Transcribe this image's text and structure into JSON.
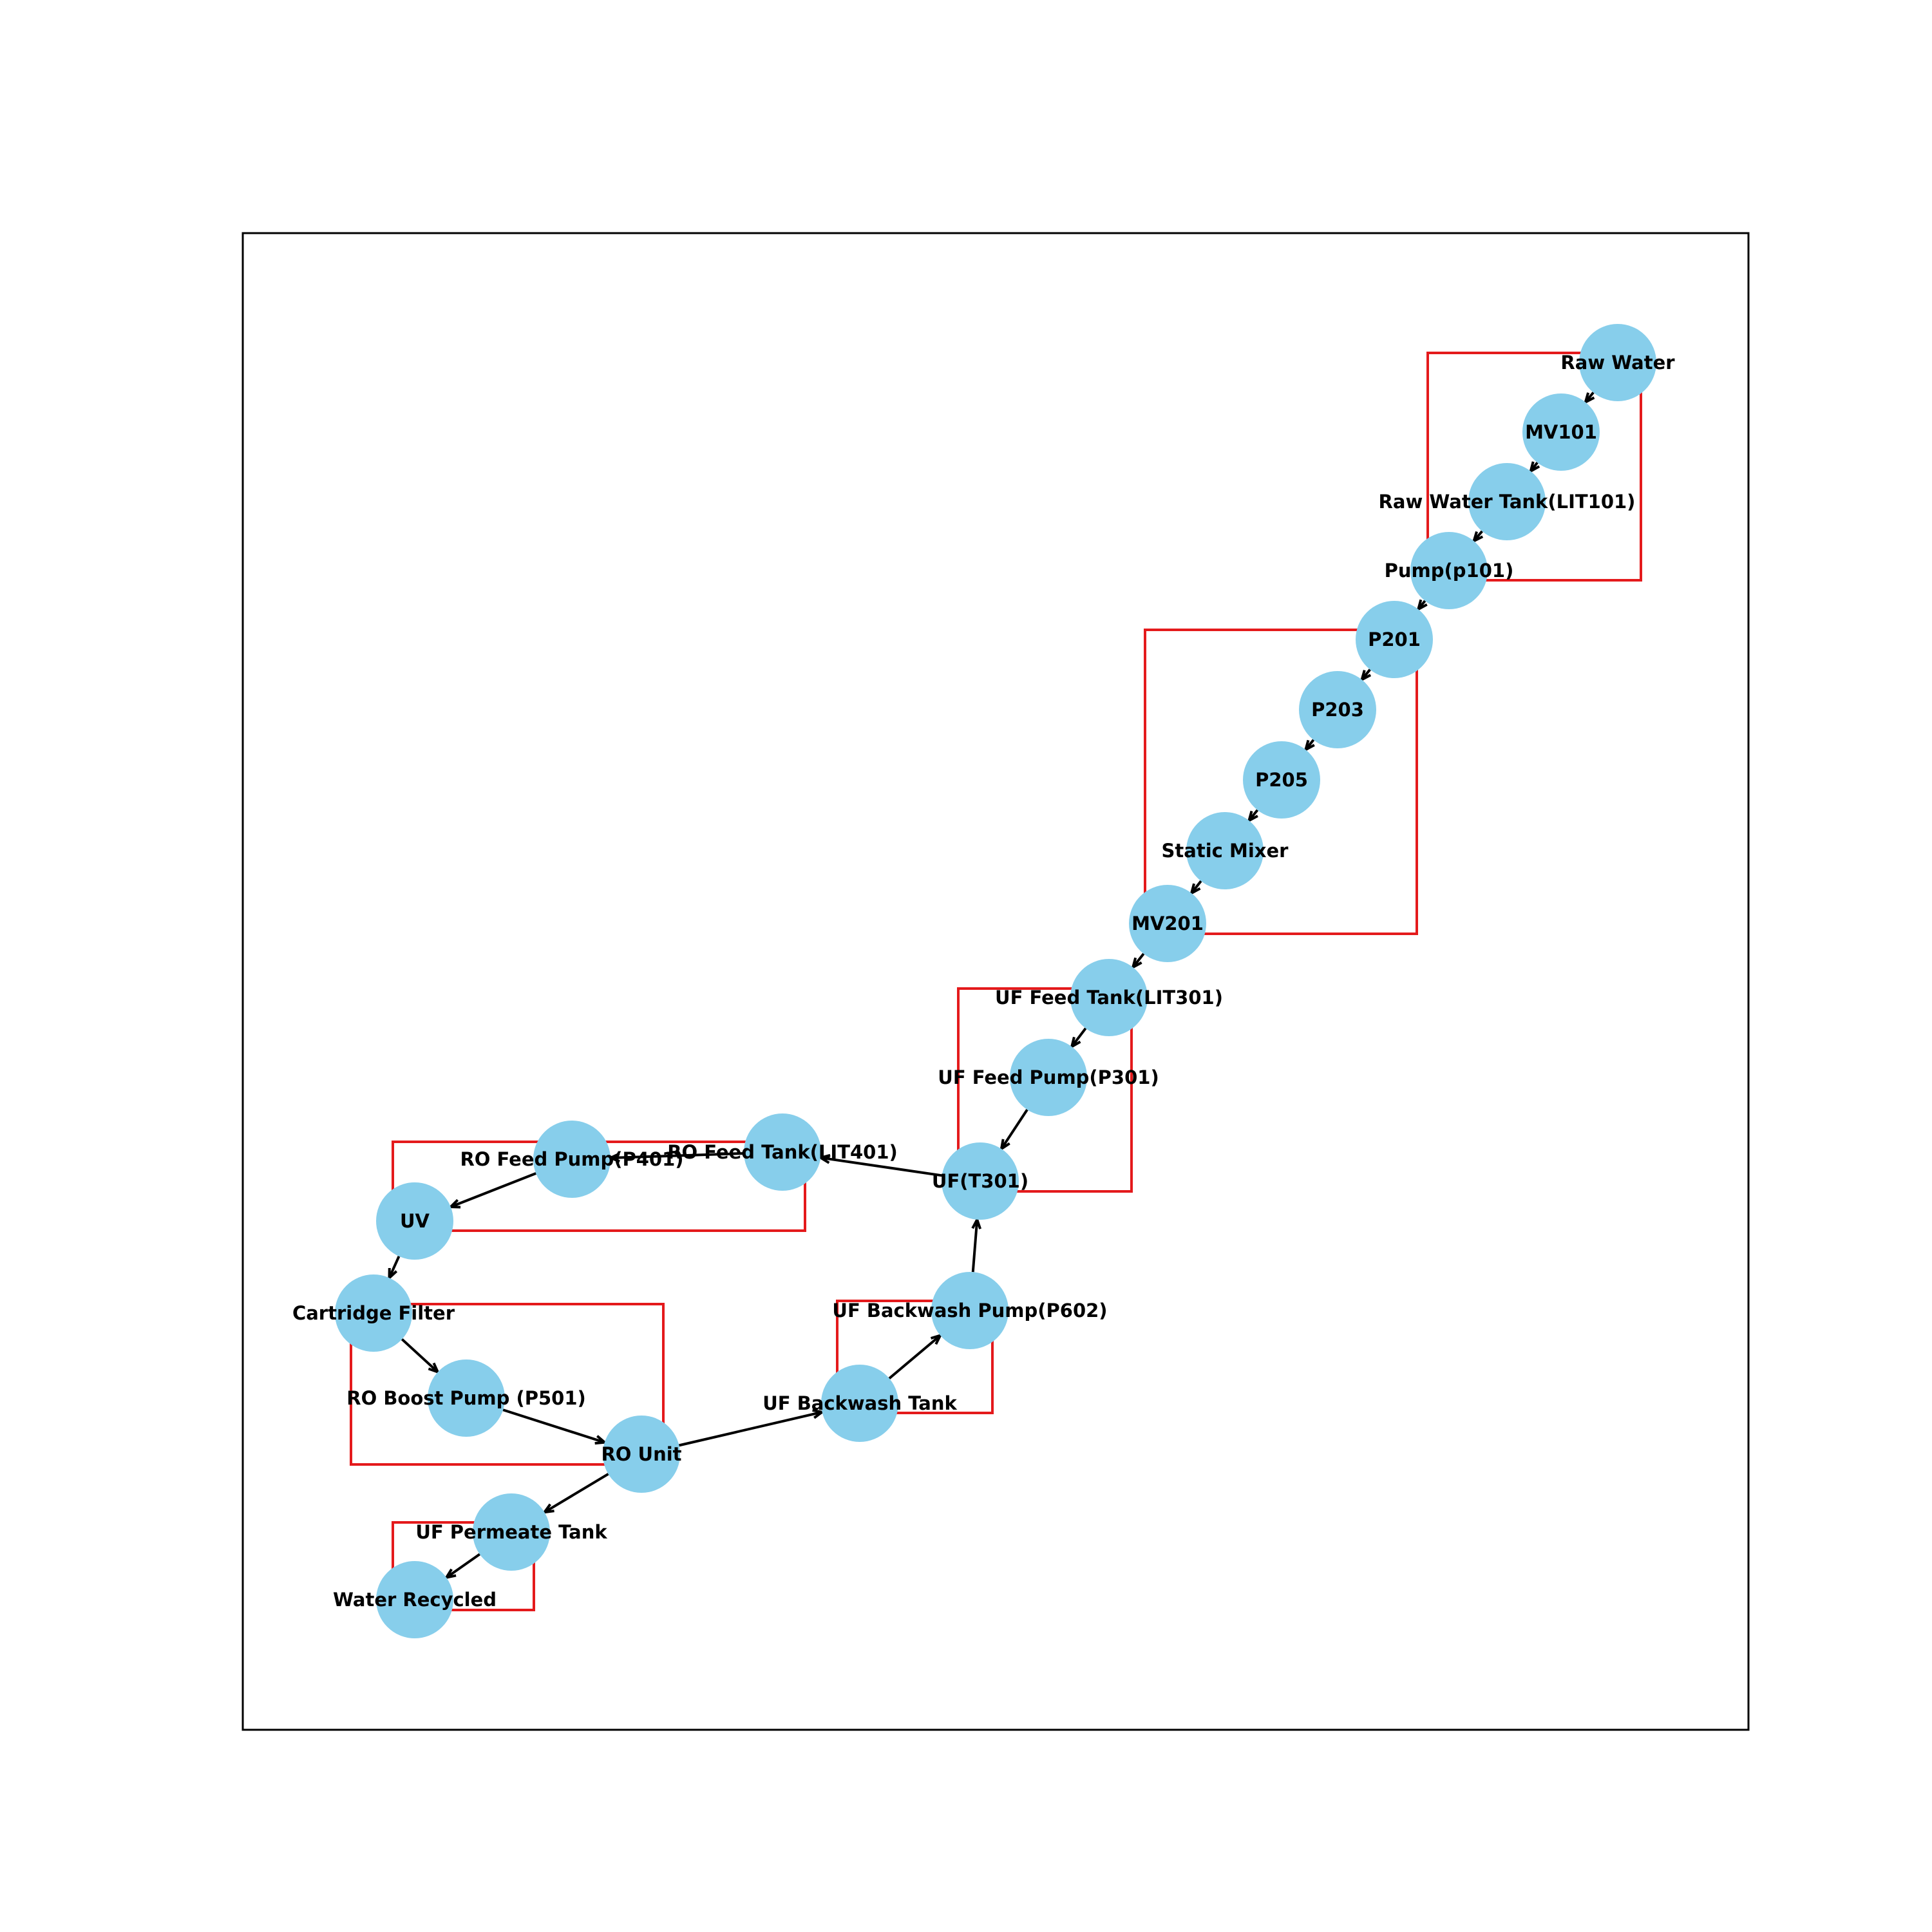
{
  "colors": {
    "node": "#87ceeb",
    "edge": "#000000",
    "group_box": "#e41a1c",
    "frame": "#000000"
  },
  "nodes": [
    {
      "id": "raw_water",
      "label": "Raw Water"
    },
    {
      "id": "mv101",
      "label": "MV101"
    },
    {
      "id": "lit101",
      "label": "Raw Water Tank(LIT101)"
    },
    {
      "id": "p101",
      "label": "Pump(p101)"
    },
    {
      "id": "p201",
      "label": "P201"
    },
    {
      "id": "p203",
      "label": "P203"
    },
    {
      "id": "p205",
      "label": "P205"
    },
    {
      "id": "mixer",
      "label": "Static Mixer"
    },
    {
      "id": "mv201",
      "label": "MV201"
    },
    {
      "id": "lit301",
      "label": "UF Feed Tank(LIT301)"
    },
    {
      "id": "p301",
      "label": "UF Feed Pump(P301)"
    },
    {
      "id": "t301",
      "label": "UF(T301)"
    },
    {
      "id": "lit401",
      "label": "RO Feed Tank(LIT401)"
    },
    {
      "id": "p401",
      "label": "RO Feed Pump(P401)"
    },
    {
      "id": "uv",
      "label": "UV"
    },
    {
      "id": "cartridge",
      "label": "Cartridge Filter"
    },
    {
      "id": "p501",
      "label": "RO Boost Pump (P501)"
    },
    {
      "id": "ro_unit",
      "label": "RO Unit"
    },
    {
      "id": "uf_backwash_tank",
      "label": "UF Backwash Tank"
    },
    {
      "id": "p602",
      "label": "UF Backwash Pump(P602)"
    },
    {
      "id": "uf_permeate",
      "label": "UF Permeate Tank"
    },
    {
      "id": "water_recycled",
      "label": "Water Recycled"
    }
  ],
  "edges": [
    {
      "from": "raw_water",
      "to": "mv101"
    },
    {
      "from": "mv101",
      "to": "lit101"
    },
    {
      "from": "lit101",
      "to": "p101"
    },
    {
      "from": "p101",
      "to": "p201"
    },
    {
      "from": "p201",
      "to": "p203"
    },
    {
      "from": "p203",
      "to": "p205"
    },
    {
      "from": "p205",
      "to": "mixer"
    },
    {
      "from": "mixer",
      "to": "mv201"
    },
    {
      "from": "mv201",
      "to": "lit301"
    },
    {
      "from": "lit301",
      "to": "p301"
    },
    {
      "from": "p301",
      "to": "t301"
    },
    {
      "from": "t301",
      "to": "lit401"
    },
    {
      "from": "lit401",
      "to": "p401"
    },
    {
      "from": "p401",
      "to": "uv"
    },
    {
      "from": "uv",
      "to": "cartridge"
    },
    {
      "from": "cartridge",
      "to": "p501"
    },
    {
      "from": "p501",
      "to": "ro_unit"
    },
    {
      "from": "ro_unit",
      "to": "uf_backwash_tank"
    },
    {
      "from": "uf_backwash_tank",
      "to": "p602"
    },
    {
      "from": "p602",
      "to": "t301"
    },
    {
      "from": "ro_unit",
      "to": "uf_permeate"
    },
    {
      "from": "uf_permeate",
      "to": "water_recycled"
    }
  ],
  "groups": [
    {
      "id": "stage1",
      "members": [
        "raw_water",
        "mv101",
        "lit101",
        "p101"
      ]
    },
    {
      "id": "stage2",
      "members": [
        "p201",
        "p203",
        "p205",
        "mixer",
        "mv201"
      ]
    },
    {
      "id": "stage3",
      "members": [
        "lit301",
        "p301",
        "t301"
      ]
    },
    {
      "id": "stage4",
      "members": [
        "lit401",
        "p401",
        "uv"
      ]
    },
    {
      "id": "stage5",
      "members": [
        "cartridge",
        "p501",
        "ro_unit"
      ]
    },
    {
      "id": "stage6",
      "members": [
        "uf_backwash_tank",
        "p602"
      ]
    },
    {
      "id": "stage7",
      "members": [
        "uf_permeate",
        "water_recycled"
      ]
    }
  ]
}
